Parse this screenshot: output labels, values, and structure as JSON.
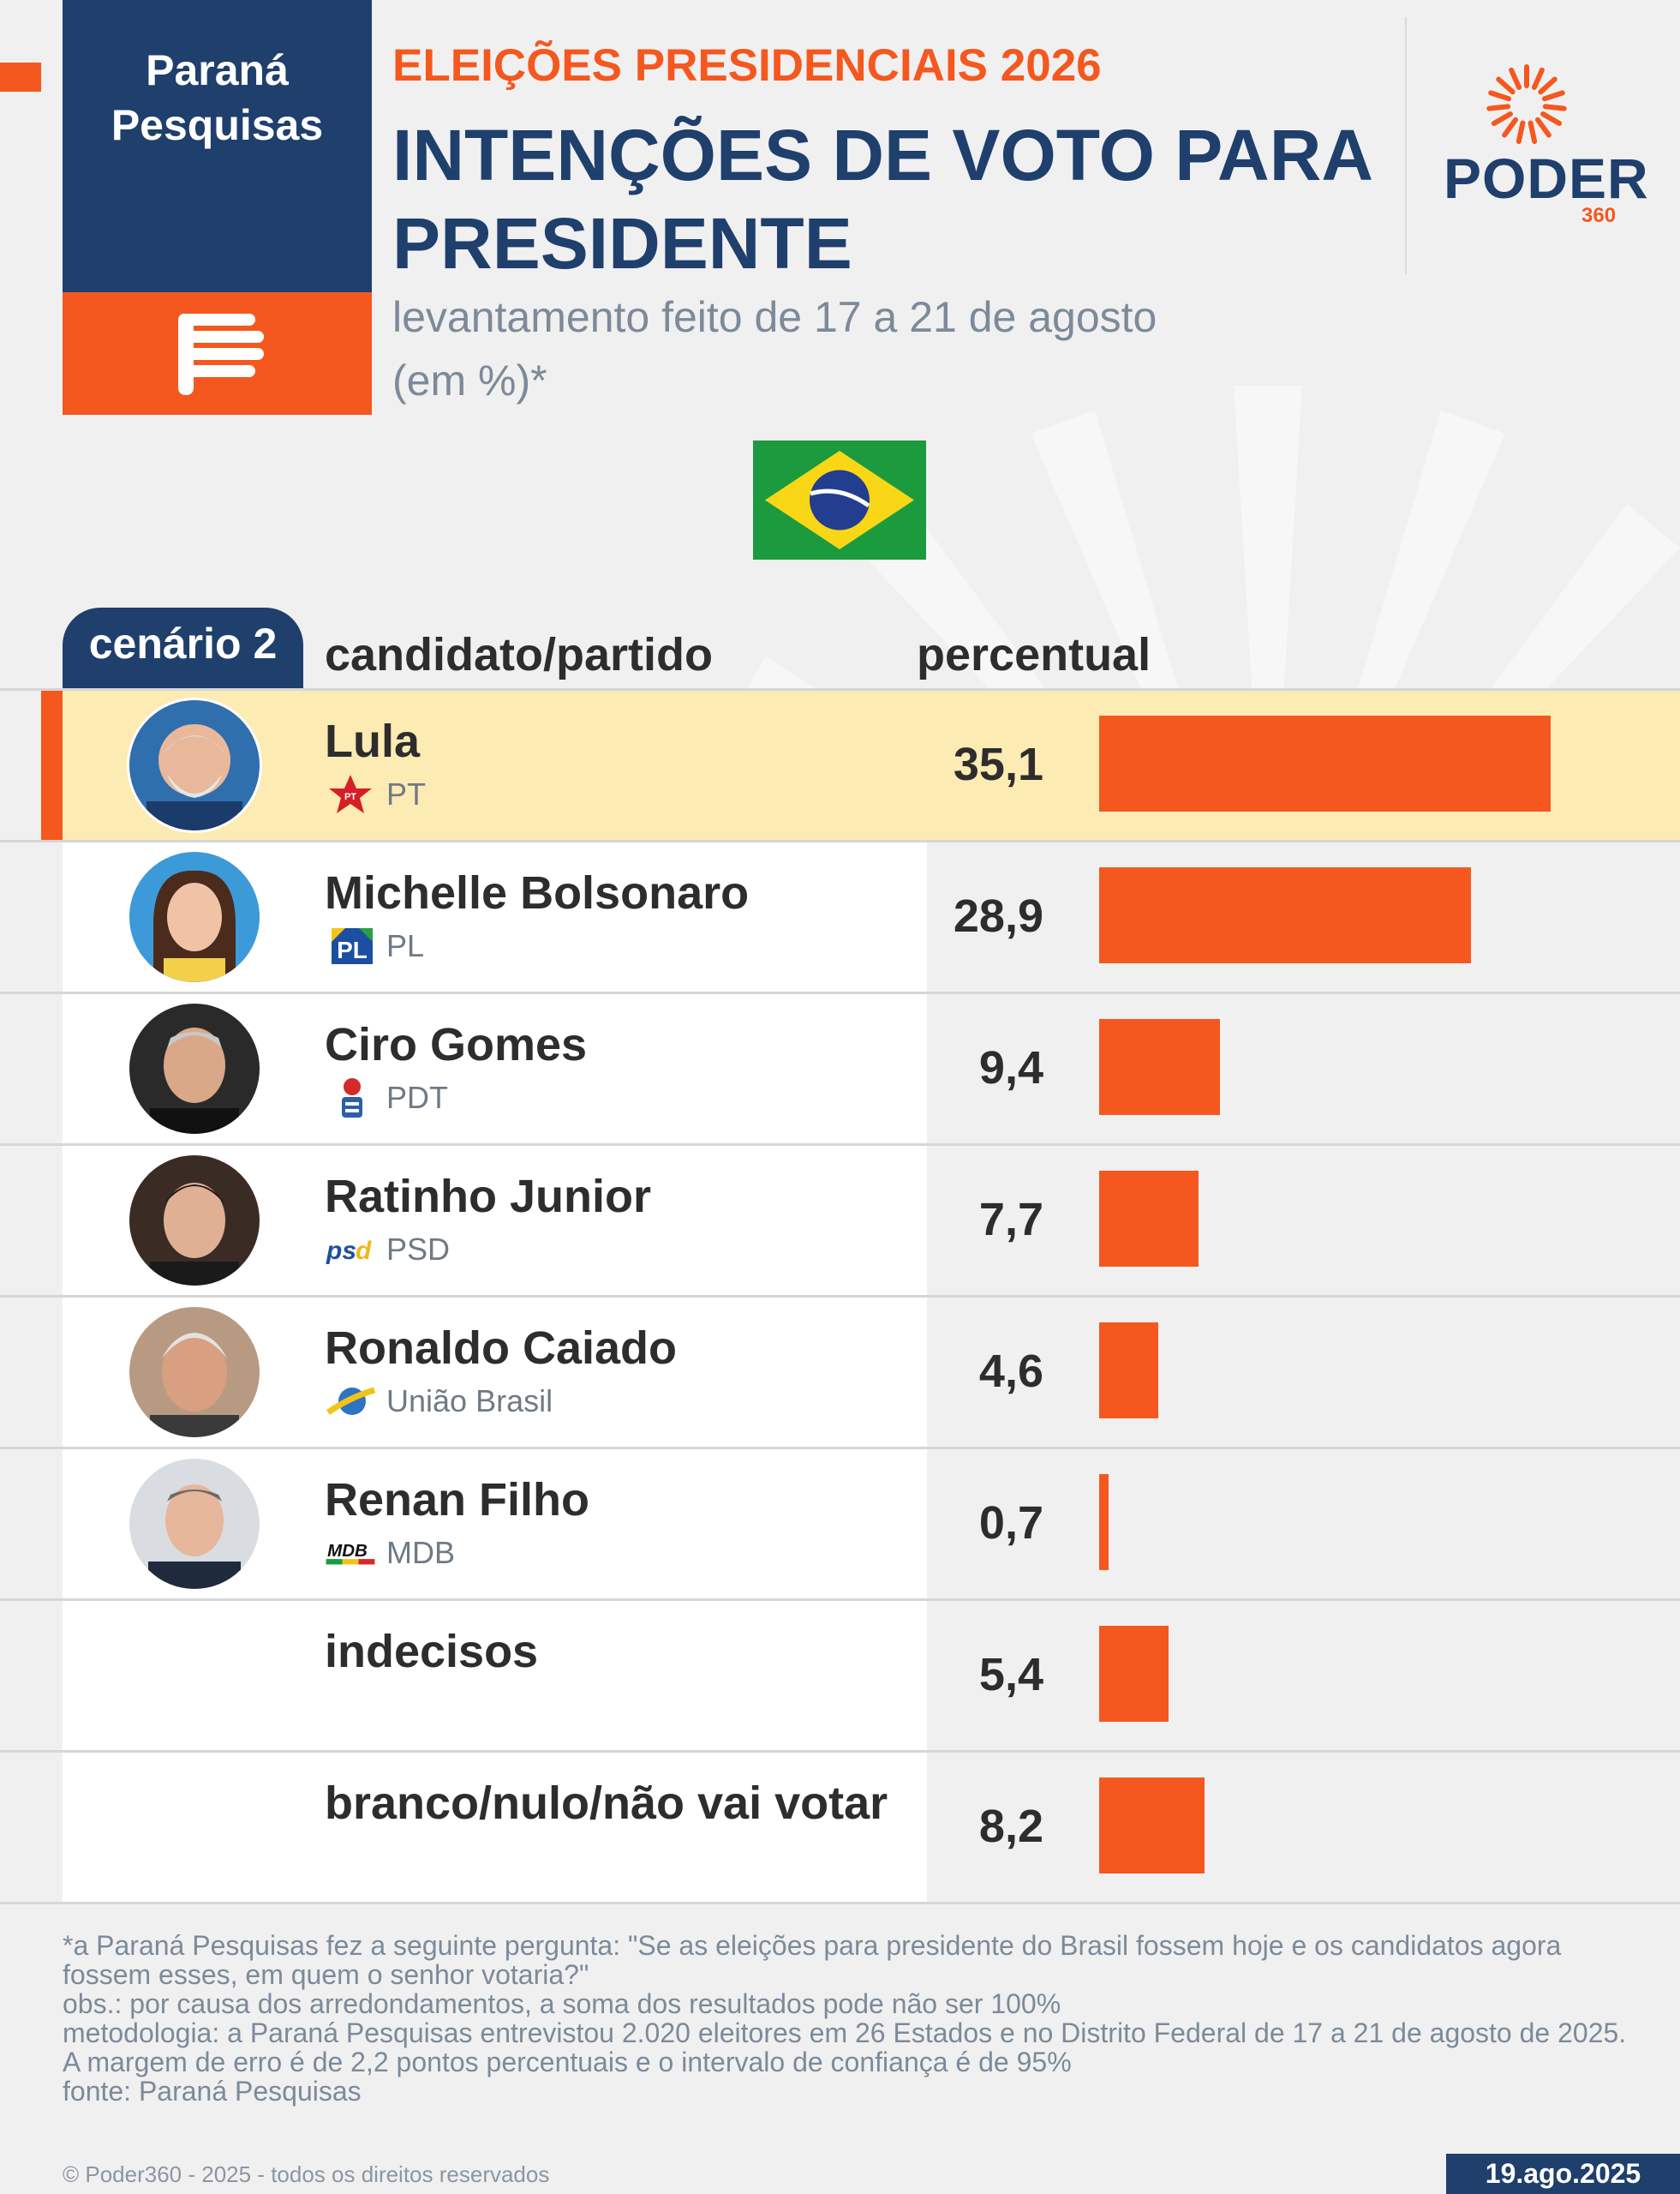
{
  "header": {
    "brand_line1": "Paraná",
    "brand_line2": "Pesquisas",
    "kicker": "ELEIÇÕES PRESIDENCIAIS 2026",
    "title": "INTENÇÕES DE VOTO PARA PRESIDENTE",
    "subtitle_line1": "levantamento feito de 17 a 21 de agosto",
    "subtitle_line2": "(em %)*",
    "logo_word": "PODER",
    "logo_number": "360"
  },
  "table": {
    "scenario": "cenário 2",
    "col_candidate": "candidato/partido",
    "col_percent": "percentual"
  },
  "rows": [
    {
      "name": "Lula",
      "party": "PT",
      "value_label": "35,1",
      "party_icon": "pt-star-logo"
    },
    {
      "name": "Michelle Bolsonaro",
      "party": "PL",
      "value_label": "28,9",
      "party_icon": "pl-logo"
    },
    {
      "name": "Ciro Gomes",
      "party": "PDT",
      "value_label": "9,4",
      "party_icon": "pdt-rose-logo"
    },
    {
      "name": "Ratinho Junior",
      "party": "PSD",
      "value_label": "7,7",
      "party_icon": "psd-logo"
    },
    {
      "name": "Ronaldo Caiado",
      "party": "União Brasil",
      "value_label": "4,6",
      "party_icon": "uniao-brasil-logo"
    },
    {
      "name": "Renan Filho",
      "party": "MDB",
      "value_label": "0,7",
      "party_icon": "mdb-logo"
    },
    {
      "name": "indecisos",
      "value_label": "5,4"
    },
    {
      "name": "branco/nulo/não vai votar",
      "value_label": "8,2"
    }
  ],
  "chart_data": {
    "type": "bar",
    "orientation": "horizontal",
    "categories": [
      "Lula",
      "Michelle Bolsonaro",
      "Ciro Gomes",
      "Ratinho Junior",
      "Ronaldo Caiado",
      "Renan Filho",
      "indecisos",
      "branco/nulo/não vai votar"
    ],
    "values": [
      35.1,
      28.9,
      9.4,
      7.7,
      4.6,
      0.7,
      5.4,
      8.2
    ],
    "highlight": "Lula",
    "bar_color": "#f4581f",
    "xlim": [
      0,
      35.1
    ]
  },
  "footer": {
    "note1": "*a Paraná Pesquisas fez a seguinte pergunta: \"Se as eleições para presidente do Brasil fossem hoje e os candidatos agora fossem esses, em quem o senhor votaria?\"",
    "note2": "obs.: por causa dos arredondamentos, a soma dos resultados pode não ser 100%",
    "note3": "metodologia: a Paraná Pesquisas entrevistou 2.020 eleitores em 26 Estados e no Distrito Federal de 17 a 21 de agosto de 2025. A margem de erro é de 2,2 pontos percentuais e o intervalo de confiança é de 95%",
    "note4": "fonte: Paraná Pesquisas",
    "copyright": "© Poder360 - 2025 - todos os direitos reservados",
    "date": "19.ago.2025"
  },
  "colors": {
    "navy": "#1f3f6c",
    "orange": "#f4581f",
    "highlight_row": "#fdebb4"
  }
}
